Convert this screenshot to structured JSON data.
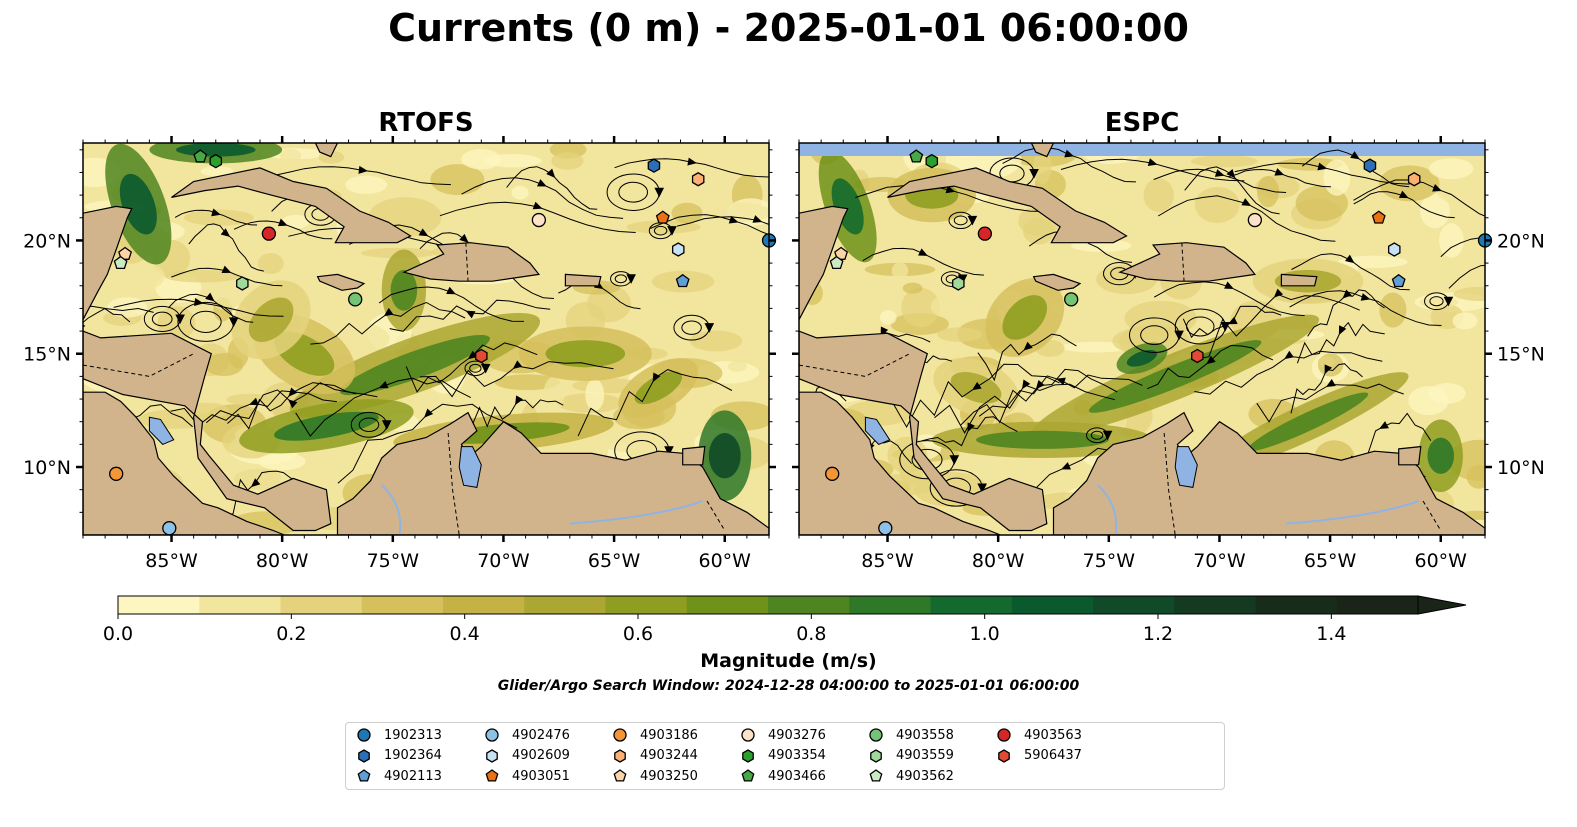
{
  "title": "Currents (0 m) - 2025-01-01 06:00:00",
  "panels": [
    {
      "title": "RTOFS"
    },
    {
      "title": "ESPC"
    }
  ],
  "map": {
    "lon_range": [
      -89,
      -58
    ],
    "lat_range": [
      7,
      24.3
    ],
    "x_ticks": [
      {
        "lon": -85,
        "label": "85°W"
      },
      {
        "lon": -80,
        "label": "80°W"
      },
      {
        "lon": -75,
        "label": "75°W"
      },
      {
        "lon": -70,
        "label": "70°W"
      },
      {
        "lon": -65,
        "label": "65°W"
      },
      {
        "lon": -60,
        "label": "60°W"
      }
    ],
    "y_ticks": [
      {
        "lat": 10,
        "label": "10°N"
      },
      {
        "lat": 15,
        "label": "15°N"
      },
      {
        "lat": 20,
        "label": "20°N"
      }
    ],
    "land_color": "#d2b48c",
    "lake_color": "#8fb4e3",
    "ocean_low_color": "#fff6c2",
    "ocean_high_color": "#0b5e2b"
  },
  "colorbar": {
    "label": "Magnitude (m/s)",
    "vmin": 0.0,
    "vmax": 1.5,
    "extend": "max",
    "ticks": [
      {
        "value": 0.0,
        "label": "0.0"
      },
      {
        "value": 0.2,
        "label": "0.2"
      },
      {
        "value": 0.4,
        "label": "0.4"
      },
      {
        "value": 0.6,
        "label": "0.6"
      },
      {
        "value": 0.8,
        "label": "0.8"
      },
      {
        "value": 1.0,
        "label": "1.0"
      },
      {
        "value": 1.2,
        "label": "1.2"
      },
      {
        "value": 1.4,
        "label": "1.4"
      }
    ],
    "colors": [
      "#fef6c0",
      "#f2e59e",
      "#e4d37c",
      "#d5c05c",
      "#c4b244",
      "#aca733",
      "#8f9e20",
      "#6f9218",
      "#4f8520",
      "#2f7828",
      "#146a2e",
      "#0b5a2d",
      "#114a28",
      "#153a22",
      "#182c1c",
      "#1b2418"
    ]
  },
  "search_window": "Glider/Argo Search Window: 2024-12-28 04:00:00 to 2025-01-01 06:00:00",
  "platforms": [
    {
      "id": "1902313",
      "marker": "circle",
      "color": "#1f77b4",
      "lon": -58.0,
      "lat": 20.0
    },
    {
      "id": "1902364",
      "marker": "hexagon",
      "color": "#2b6fb6",
      "lon": -63.2,
      "lat": 23.3
    },
    {
      "id": "4902113",
      "marker": "pentagon",
      "color": "#5f9fd8",
      "lon": -61.9,
      "lat": 18.2
    },
    {
      "id": "4902476",
      "marker": "circle",
      "color": "#8ec1e6",
      "lon": -85.1,
      "lat": 7.3
    },
    {
      "id": "4902609",
      "marker": "hexagon",
      "color": "#c8e2f5",
      "lon": -62.1,
      "lat": 19.6
    },
    {
      "id": "4903051",
      "marker": "pentagon",
      "color": "#ec7014",
      "lon": -62.8,
      "lat": 21.0
    },
    {
      "id": "4903186",
      "marker": "circle",
      "color": "#f39638",
      "lon": -87.5,
      "lat": 9.7
    },
    {
      "id": "4903244",
      "marker": "hexagon",
      "color": "#fdb072",
      "lon": -61.2,
      "lat": 22.7
    },
    {
      "id": "4903250",
      "marker": "pentagon",
      "color": "#fdd3a8",
      "lon": -87.1,
      "lat": 19.4
    },
    {
      "id": "4903276",
      "marker": "circle",
      "color": "#fde2ca",
      "lon": -68.4,
      "lat": 20.9
    },
    {
      "id": "4903354",
      "marker": "hexagon",
      "color": "#2ca02c",
      "lon": -83.0,
      "lat": 23.5
    },
    {
      "id": "4903466",
      "marker": "pentagon",
      "color": "#48a845",
      "lon": -83.7,
      "lat": 23.7
    },
    {
      "id": "4903558",
      "marker": "circle",
      "color": "#74c476",
      "lon": -76.7,
      "lat": 17.4
    },
    {
      "id": "4903559",
      "marker": "hexagon",
      "color": "#a1d99b",
      "lon": -81.8,
      "lat": 18.1
    },
    {
      "id": "4903562",
      "marker": "pentagon",
      "color": "#ccebc5",
      "lon": -87.3,
      "lat": 19.0
    },
    {
      "id": "4903563",
      "marker": "circle",
      "color": "#d62728",
      "lon": -80.6,
      "lat": 20.3
    },
    {
      "id": "5906437",
      "marker": "hexagon",
      "color": "#e34a33",
      "lon": -71.0,
      "lat": 14.9
    }
  ]
}
